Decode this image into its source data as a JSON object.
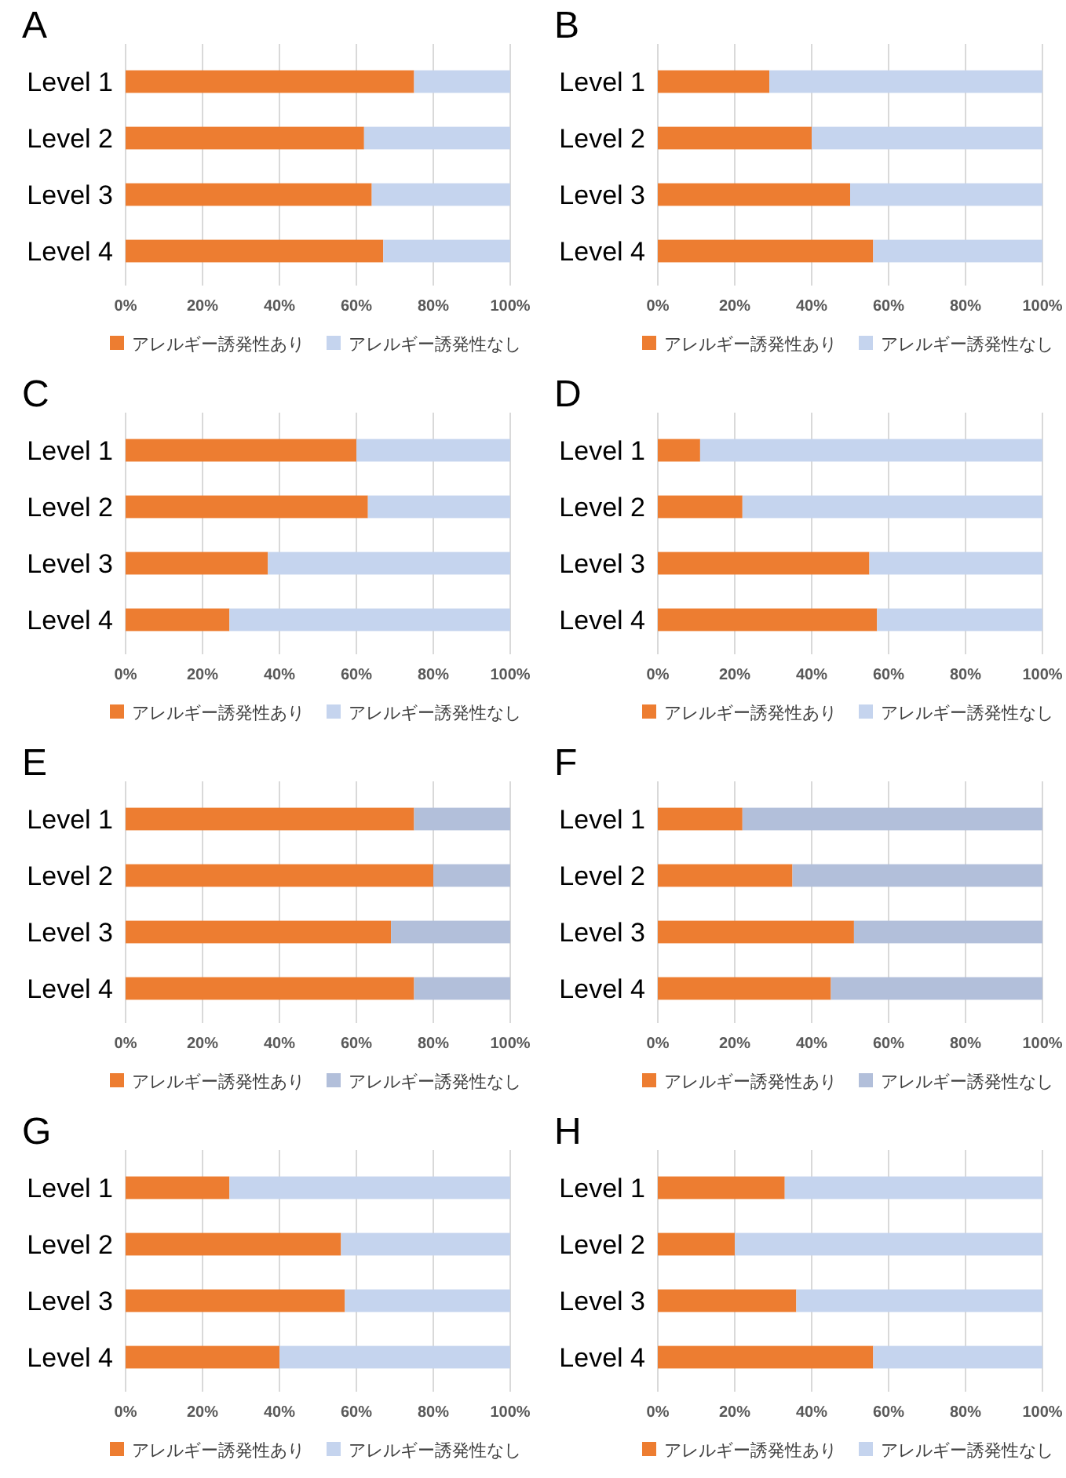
{
  "chart_data": [
    {
      "type": "bar",
      "title": "A",
      "orientation": "horizontal",
      "stacked": true,
      "categories": [
        "Level 1",
        "Level 2",
        "Level 3",
        "Level 4"
      ],
      "xlim": [
        0,
        100
      ],
      "xticks": [
        {
          "value": 0,
          "label": "0%"
        },
        {
          "value": 20,
          "label": "20%"
        },
        {
          "value": 40,
          "label": "40%"
        },
        {
          "value": 60,
          "label": "60%"
        },
        {
          "value": 80,
          "label": "80%"
        },
        {
          "value": 100,
          "label": "100%"
        }
      ],
      "grid": "x",
      "legend": "bottom",
      "series": [
        {
          "name": "アレルギー誘発性あり",
          "color": "#ed7d31",
          "values": [
            75,
            62,
            64,
            67
          ]
        },
        {
          "name": "アレルギー誘発性なし",
          "color": "#c5d4ee",
          "values": [
            25,
            38,
            36,
            33
          ]
        }
      ]
    },
    {
      "type": "bar",
      "title": "B",
      "orientation": "horizontal",
      "stacked": true,
      "categories": [
        "Level 1",
        "Level 2",
        "Level 3",
        "Level 4"
      ],
      "xlim": [
        0,
        100
      ],
      "xticks": [
        {
          "value": 0,
          "label": "0%"
        },
        {
          "value": 20,
          "label": "20%"
        },
        {
          "value": 40,
          "label": "40%"
        },
        {
          "value": 60,
          "label": "60%"
        },
        {
          "value": 80,
          "label": "80%"
        },
        {
          "value": 100,
          "label": "100%"
        }
      ],
      "grid": "x",
      "legend": "bottom",
      "series": [
        {
          "name": "アレルギー誘発性あり",
          "color": "#ed7d31",
          "values": [
            29,
            40,
            50,
            56
          ]
        },
        {
          "name": "アレルギー誘発性なし",
          "color": "#c5d4ee",
          "values": [
            71,
            60,
            50,
            44
          ]
        }
      ]
    },
    {
      "type": "bar",
      "title": "C",
      "orientation": "horizontal",
      "stacked": true,
      "categories": [
        "Level 1",
        "Level 2",
        "Level 3",
        "Level 4"
      ],
      "xlim": [
        0,
        100
      ],
      "xticks": [
        {
          "value": 0,
          "label": "0%"
        },
        {
          "value": 20,
          "label": "20%"
        },
        {
          "value": 40,
          "label": "40%"
        },
        {
          "value": 60,
          "label": "60%"
        },
        {
          "value": 80,
          "label": "80%"
        },
        {
          "value": 100,
          "label": "100%"
        }
      ],
      "grid": "x",
      "legend": "bottom",
      "series": [
        {
          "name": "アレルギー誘発性あり",
          "color": "#ed7d31",
          "values": [
            60,
            63,
            37,
            27
          ]
        },
        {
          "name": "アレルギー誘発性なし",
          "color": "#c5d4ee",
          "values": [
            40,
            37,
            63,
            73
          ]
        }
      ]
    },
    {
      "type": "bar",
      "title": "D",
      "orientation": "horizontal",
      "stacked": true,
      "categories": [
        "Level 1",
        "Level 2",
        "Level 3",
        "Level 4"
      ],
      "xlim": [
        0,
        100
      ],
      "xticks": [
        {
          "value": 0,
          "label": "0%"
        },
        {
          "value": 20,
          "label": "20%"
        },
        {
          "value": 40,
          "label": "40%"
        },
        {
          "value": 60,
          "label": "60%"
        },
        {
          "value": 80,
          "label": "80%"
        },
        {
          "value": 100,
          "label": "100%"
        }
      ],
      "grid": "x",
      "legend": "bottom",
      "series": [
        {
          "name": "アレルギー誘発性あり",
          "color": "#ed7d31",
          "values": [
            11,
            22,
            55,
            57
          ]
        },
        {
          "name": "アレルギー誘発性なし",
          "color": "#c5d4ee",
          "values": [
            89,
            78,
            45,
            43
          ]
        }
      ]
    },
    {
      "type": "bar",
      "title": "E",
      "orientation": "horizontal",
      "stacked": true,
      "categories": [
        "Level 1",
        "Level 2",
        "Level 3",
        "Level 4"
      ],
      "xlim": [
        0,
        100
      ],
      "xticks": [
        {
          "value": 0,
          "label": "0%"
        },
        {
          "value": 20,
          "label": "20%"
        },
        {
          "value": 40,
          "label": "40%"
        },
        {
          "value": 60,
          "label": "60%"
        },
        {
          "value": 80,
          "label": "80%"
        },
        {
          "value": 100,
          "label": "100%"
        }
      ],
      "grid": "x",
      "legend": "bottom",
      "series": [
        {
          "name": "アレルギー誘発性あり",
          "color": "#ed7d31",
          "values": [
            75,
            80,
            69,
            75
          ]
        },
        {
          "name": "アレルギー誘発性なし",
          "color": "#b2bfda",
          "values": [
            25,
            20,
            31,
            25
          ]
        }
      ]
    },
    {
      "type": "bar",
      "title": "F",
      "orientation": "horizontal",
      "stacked": true,
      "categories": [
        "Level 1",
        "Level 2",
        "Level 3",
        "Level 4"
      ],
      "xlim": [
        0,
        100
      ],
      "xticks": [
        {
          "value": 0,
          "label": "0%"
        },
        {
          "value": 20,
          "label": "20%"
        },
        {
          "value": 40,
          "label": "40%"
        },
        {
          "value": 60,
          "label": "60%"
        },
        {
          "value": 80,
          "label": "80%"
        },
        {
          "value": 100,
          "label": "100%"
        }
      ],
      "grid": "x",
      "legend": "bottom",
      "series": [
        {
          "name": "アレルギー誘発性あり",
          "color": "#ed7d31",
          "values": [
            22,
            35,
            51,
            45
          ]
        },
        {
          "name": "アレルギー誘発性なし",
          "color": "#b2bfda",
          "values": [
            78,
            65,
            49,
            55
          ]
        }
      ]
    },
    {
      "type": "bar",
      "title": "G",
      "orientation": "horizontal",
      "stacked": true,
      "categories": [
        "Level 1",
        "Level 2",
        "Level 3",
        "Level 4"
      ],
      "xlim": [
        0,
        100
      ],
      "xticks": [
        {
          "value": 0,
          "label": "0%"
        },
        {
          "value": 20,
          "label": "20%"
        },
        {
          "value": 40,
          "label": "40%"
        },
        {
          "value": 60,
          "label": "60%"
        },
        {
          "value": 80,
          "label": "80%"
        },
        {
          "value": 100,
          "label": "100%"
        }
      ],
      "grid": "x",
      "legend": "bottom",
      "series": [
        {
          "name": "アレルギー誘発性あり",
          "color": "#ed7d31",
          "values": [
            27,
            56,
            57,
            40
          ]
        },
        {
          "name": "アレルギー誘発性なし",
          "color": "#c5d4ee",
          "values": [
            73,
            44,
            43,
            60
          ]
        }
      ]
    },
    {
      "type": "bar",
      "title": "H",
      "orientation": "horizontal",
      "stacked": true,
      "categories": [
        "Level 1",
        "Level 2",
        "Level 3",
        "Level 4"
      ],
      "xlim": [
        0,
        100
      ],
      "xticks": [
        {
          "value": 0,
          "label": "0%"
        },
        {
          "value": 20,
          "label": "20%"
        },
        {
          "value": 40,
          "label": "40%"
        },
        {
          "value": 60,
          "label": "60%"
        },
        {
          "value": 80,
          "label": "80%"
        },
        {
          "value": 100,
          "label": "100%"
        }
      ],
      "grid": "x",
      "legend": "bottom",
      "series": [
        {
          "name": "アレルギー誘発性あり",
          "color": "#ed7d31",
          "values": [
            33,
            20,
            36,
            56
          ]
        },
        {
          "name": "アレルギー誘発性なし",
          "color": "#c5d4ee",
          "values": [
            67,
            80,
            64,
            44
          ]
        }
      ]
    }
  ]
}
